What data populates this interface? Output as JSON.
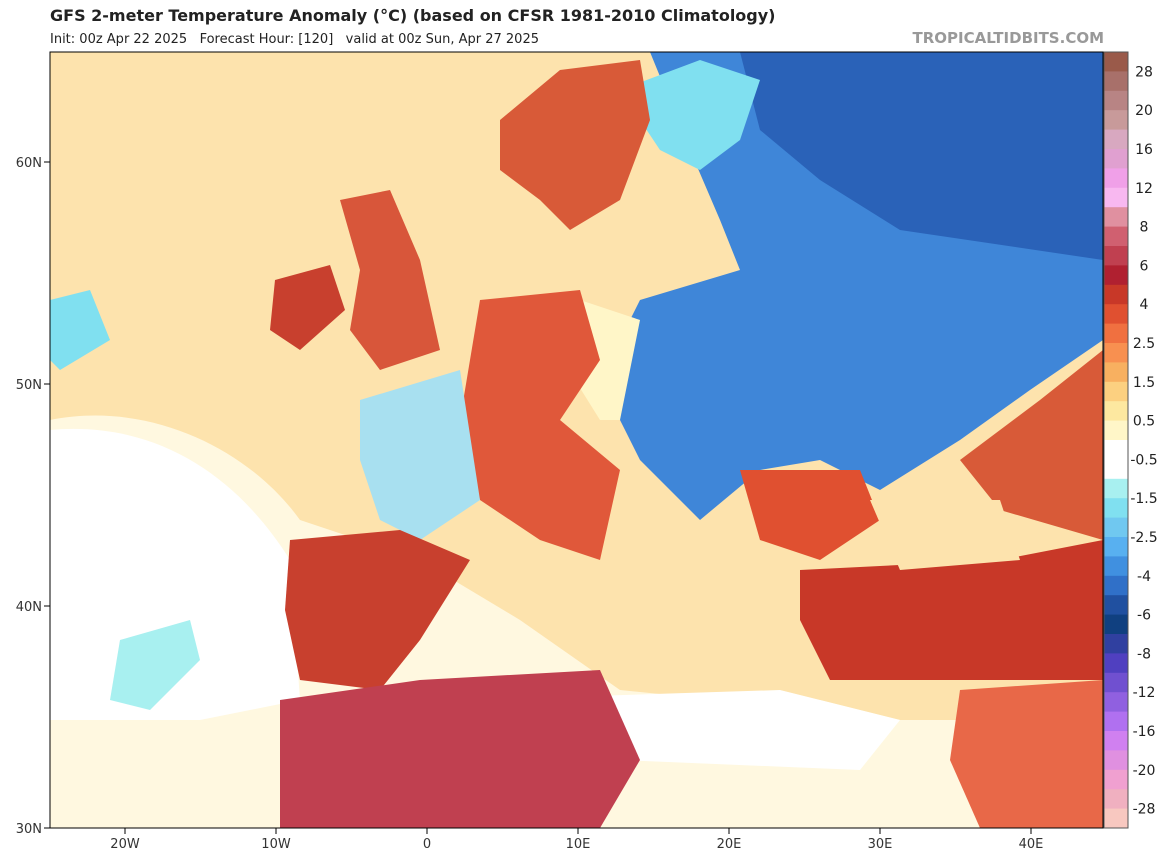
{
  "header": {
    "title": "GFS 2-meter Temperature Anomaly (°C) (based on CFSR 1981-2010 Climatology)",
    "subtitle": "Init: 00z Apr 22 2025   Forecast Hour: [120]   valid at 00z Sun, Apr 27 2025",
    "source": "TROPICALTIDBITS.COM"
  },
  "map": {
    "lat_labels": [
      "60N",
      "50N",
      "40N",
      "30N"
    ],
    "lon_labels": [
      "20W",
      "10W",
      "0",
      "10E",
      "20E",
      "30E",
      "40E"
    ]
  },
  "colorbar": {
    "labels": [
      "28",
      "20",
      "16",
      "12",
      "8",
      "6",
      "4",
      "2.5",
      "1.5",
      "0.5",
      "-0.5",
      "-1.5",
      "-2.5",
      "-4",
      "-6",
      "-8",
      "-12",
      "-16",
      "-20",
      "-28"
    ],
    "colors": [
      "#9a5a4a",
      "#a8706a",
      "#b88484",
      "#c89a9a",
      "#d8a8c0",
      "#e0a0d0",
      "#f0a0e8",
      "#f8b8f0",
      "#e090a0",
      "#d06070",
      "#c04050",
      "#b02030",
      "#c83828",
      "#e05030",
      "#f07040",
      "#f89050",
      "#f8b060",
      "#fcd080",
      "#fde8a0",
      "#fff6c8",
      "#ffffff",
      "#ffffff",
      "#a8f0f0",
      "#80e0f0",
      "#70c8f0",
      "#58b0f0",
      "#4090e0",
      "#3070c8",
      "#2050a0",
      "#104080",
      "#3040a0",
      "#5040c0",
      "#7050d0",
      "#9060e0",
      "#b070f0",
      "#d080f0",
      "#e090e0",
      "#f0a0d0",
      "#f0b0c0",
      "#f8c8c0"
    ]
  }
}
